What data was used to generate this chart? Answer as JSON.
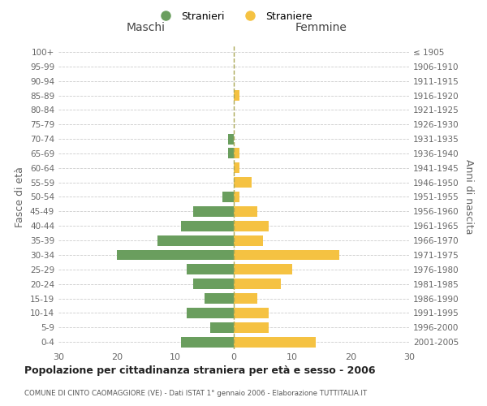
{
  "age_groups": [
    "0-4",
    "5-9",
    "10-14",
    "15-19",
    "20-24",
    "25-29",
    "30-34",
    "35-39",
    "40-44",
    "45-49",
    "50-54",
    "55-59",
    "60-64",
    "65-69",
    "70-74",
    "75-79",
    "80-84",
    "85-89",
    "90-94",
    "95-99",
    "100+"
  ],
  "birth_years": [
    "2001-2005",
    "1996-2000",
    "1991-1995",
    "1986-1990",
    "1981-1985",
    "1976-1980",
    "1971-1975",
    "1966-1970",
    "1961-1965",
    "1956-1960",
    "1951-1955",
    "1946-1950",
    "1941-1945",
    "1936-1940",
    "1931-1935",
    "1926-1930",
    "1921-1925",
    "1916-1920",
    "1911-1915",
    "1906-1910",
    "≤ 1905"
  ],
  "maschi": [
    9,
    4,
    8,
    5,
    7,
    8,
    20,
    13,
    9,
    7,
    2,
    0,
    0,
    1,
    1,
    0,
    0,
    0,
    0,
    0,
    0
  ],
  "femmine": [
    14,
    6,
    6,
    4,
    8,
    10,
    18,
    5,
    6,
    4,
    1,
    3,
    1,
    1,
    0,
    0,
    0,
    1,
    0,
    0,
    0
  ],
  "color_maschi": "#6a9e5e",
  "color_femmine": "#f5c242",
  "title": "Popolazione per cittadinanza straniera per età e sesso - 2006",
  "subtitle": "COMUNE DI CINTO CAOMAGGIORE (VE) - Dati ISTAT 1° gennaio 2006 - Elaborazione TUTTITALIA.IT",
  "ylabel_left": "Fasce di età",
  "ylabel_right": "Anni di nascita",
  "xlabel_left": "Maschi",
  "xlabel_right": "Femmine",
  "legend_maschi": "Stranieri",
  "legend_femmine": "Straniere",
  "xlim": 30,
  "background_color": "#ffffff",
  "grid_color": "#cccccc"
}
